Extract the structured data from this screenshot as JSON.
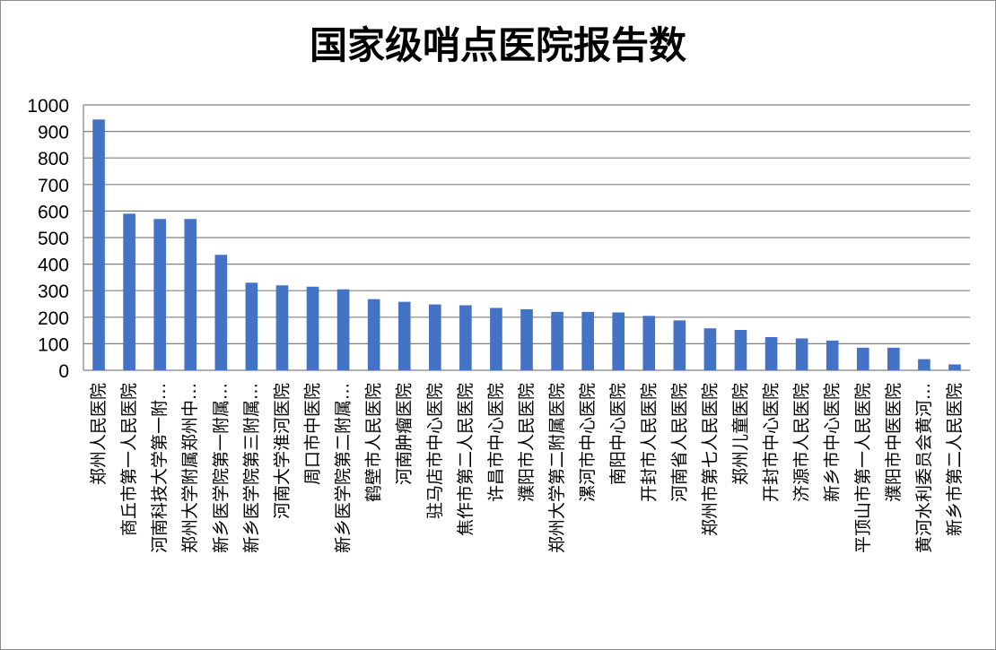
{
  "chart_data": {
    "type": "bar",
    "title": "国家级哨点医院报告数",
    "xlabel": "",
    "ylabel": "",
    "ylim": [
      0,
      1000
    ],
    "yticks": [
      0,
      100,
      200,
      300,
      400,
      500,
      600,
      700,
      800,
      900,
      1000
    ],
    "grid": true,
    "legend": "none",
    "bar_color": "#4472C4",
    "grid_color": "#808080",
    "categories": [
      "郑州人民医院",
      "商丘市第一人民医院",
      "河南科技大学第一附…",
      "郑州大学附属郑州中…",
      "新乡医学院第一附属…",
      "新乡医学院第三附属…",
      "河南大学淮河医院",
      "周口市中医院",
      "新乡医学院第二附属…",
      "鹤壁市人民医院",
      "河南肿瘤医院",
      "驻马店市中心医院",
      "焦作市第二人民医院",
      "许昌市中心医院",
      "濮阳市人民医院",
      "郑州大学第二附属医院",
      "漯河市中心医院",
      "南阳中心医院",
      "开封市人民医院",
      "河南省人民医院",
      "郑州市第七人民医院",
      "郑州儿童医院",
      "开封市中心医院",
      "济源市人民医院",
      "新乡市中心医院",
      "平顶山市第一人民医院",
      "濮阳市中医医院",
      "黄河水利委员会黄河…",
      "新乡市第二人民医院"
    ],
    "values": [
      945,
      590,
      570,
      570,
      435,
      330,
      320,
      315,
      305,
      268,
      258,
      248,
      245,
      235,
      230,
      220,
      220,
      218,
      205,
      188,
      158,
      152,
      125,
      120,
      112,
      85,
      85,
      42,
      22
    ]
  }
}
